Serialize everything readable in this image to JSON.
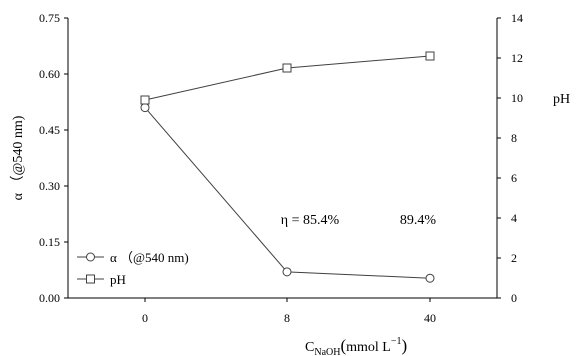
{
  "chart_data": {
    "type": "line",
    "categories": [
      "0",
      "8",
      "40"
    ],
    "series": [
      {
        "name": "α （@540 nm)",
        "axis": "left",
        "marker": "circle",
        "values": [
          0.51,
          0.07,
          0.053
        ]
      },
      {
        "name": "pH",
        "axis": "right",
        "marker": "square",
        "values": [
          9.9,
          11.5,
          12.1
        ]
      }
    ],
    "y_left": {
      "label": "α （@540 nm)",
      "range": [
        0,
        0.75
      ],
      "ticks": [
        "0.00",
        "0.15",
        "0.30",
        "0.45",
        "0.60",
        "0.75"
      ]
    },
    "y_right": {
      "label": "pH",
      "range": [
        0,
        14
      ],
      "ticks": [
        "0",
        "2",
        "4",
        "6",
        "8",
        "10",
        "12",
        "14"
      ]
    },
    "x_label": {
      "main": "C",
      "sub": "NaOH",
      "paren_open": "(",
      "unit": "mmol L",
      "sup": "−1",
      "paren_close": ")"
    },
    "annotations": [
      {
        "text": "η = 85.4%",
        "x": "8"
      },
      {
        "text": "89.4%",
        "x": "40"
      }
    ],
    "legend_position": "bottom-left",
    "grid": false
  },
  "colors": {
    "line": "#404040",
    "axis": "#000000"
  }
}
